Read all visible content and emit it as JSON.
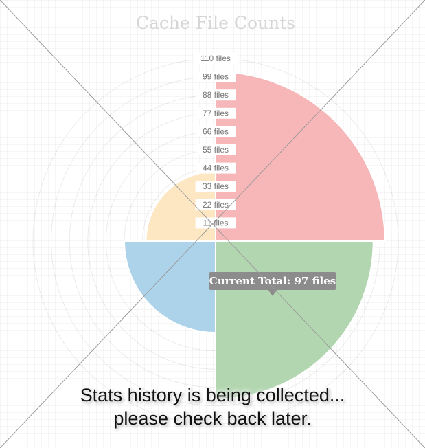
{
  "chart_data": {
    "type": "polarArea",
    "title": "Cache File Counts",
    "r_tick_labels": [
      "11 files",
      "22 files",
      "33 files",
      "44 files",
      "55 files",
      "66 files",
      "77 files",
      "88 files",
      "99 files",
      "110 files"
    ],
    "r_max": 110,
    "r_step": 11,
    "segments": [
      {
        "value": 102,
        "color": "#f7b6b8"
      },
      {
        "value": 95,
        "color": "#b2d6b0"
      },
      {
        "value": 55,
        "color": "#acd3e9"
      },
      {
        "value": 42,
        "color": "#fde6c2"
      }
    ],
    "tooltip": "Current Total: 97 files"
  },
  "overlay": {
    "line1": "Stats history is being collected...",
    "line2": "please check back later."
  }
}
